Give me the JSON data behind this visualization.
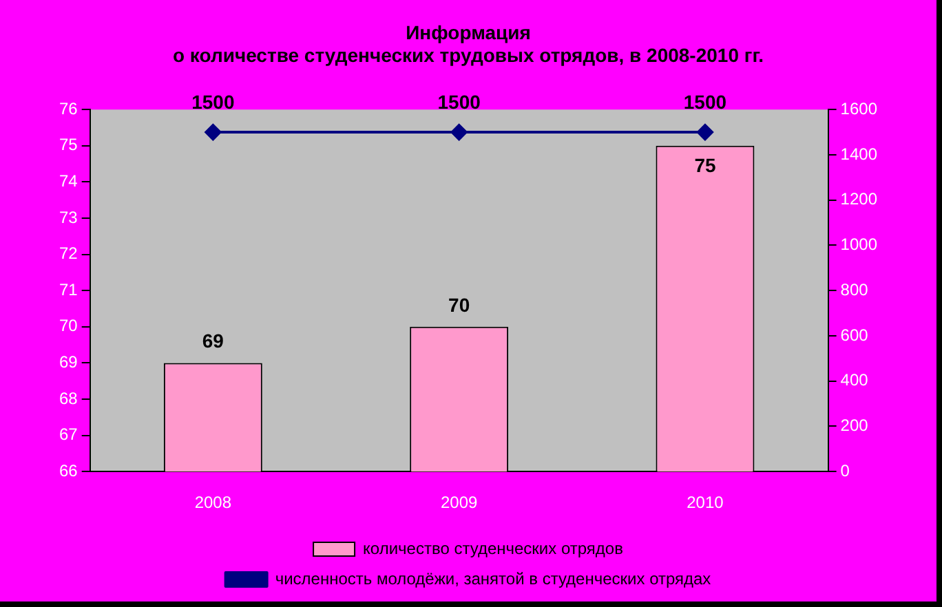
{
  "chart_data": {
    "type": "bar",
    "title": "Информация\nо количестве студенческих трудовых отрядов, в 2008-2010 гг.",
    "categories": [
      "2008",
      "2009",
      "2010"
    ],
    "series": [
      {
        "name": "количество студенческих отрядов",
        "color": "#ff99cc",
        "values": [
          69,
          70,
          75
        ]
      },
      {
        "name": "численность молодёжи, занятой в студенческих отрядах",
        "type": "line",
        "axis": "y2",
        "color": "#000080",
        "values": [
          1500,
          1500,
          1500
        ]
      }
    ],
    "ylim": [
      66,
      76
    ],
    "yticks": [
      66,
      67,
      68,
      69,
      70,
      71,
      72,
      73,
      74,
      75,
      76
    ],
    "y2lim": [
      0,
      1600
    ],
    "y2ticks": [
      0,
      200,
      400,
      600,
      800,
      1000,
      1200,
      1400,
      1600
    ],
    "data_labels": true,
    "grid": false,
    "legend": "bottom",
    "marker": "diamond"
  }
}
